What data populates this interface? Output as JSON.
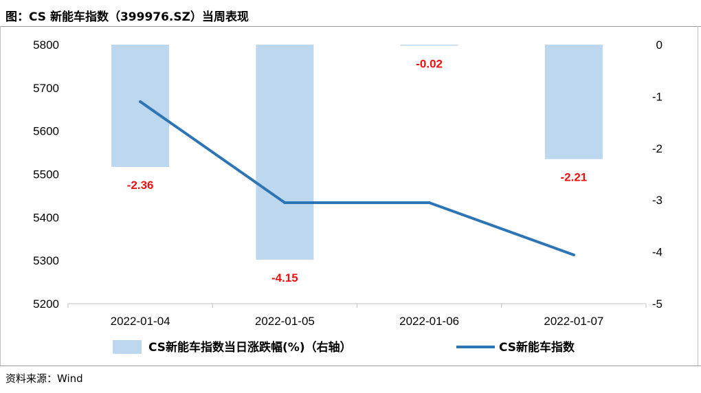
{
  "title": "图：CS 新能车指数（399976.SZ）当周表现",
  "source": "资料来源：Wind",
  "chart_data": {
    "type": "bar+line",
    "categories": [
      "2022-01-04",
      "2022-01-05",
      "2022-01-06",
      "2022-01-07"
    ],
    "left_axis": {
      "min": 5200,
      "max": 5800,
      "ticks": [
        5200,
        5300,
        5400,
        5500,
        5600,
        5700,
        5800
      ]
    },
    "right_axis": {
      "min": -5,
      "max": 0,
      "ticks": [
        0,
        -1,
        -2,
        -3,
        -4,
        -5
      ]
    },
    "series": [
      {
        "name": "CS新能车指数当日涨跌幅(%)（右轴）",
        "type": "bar",
        "axis": "right",
        "color": "#bdd7ee",
        "values": [
          -2.36,
          -4.15,
          -0.02,
          -2.21
        ],
        "labels": [
          "-2.36",
          "-4.15",
          "-0.02",
          "-2.21"
        ],
        "label_color": "#ee1111"
      },
      {
        "name": "CS新能车指数",
        "type": "line",
        "axis": "left",
        "color": "#2e75b6",
        "values": [
          5668,
          5434,
          5434,
          5313
        ]
      }
    ],
    "grid": false,
    "legend_position": "bottom"
  }
}
